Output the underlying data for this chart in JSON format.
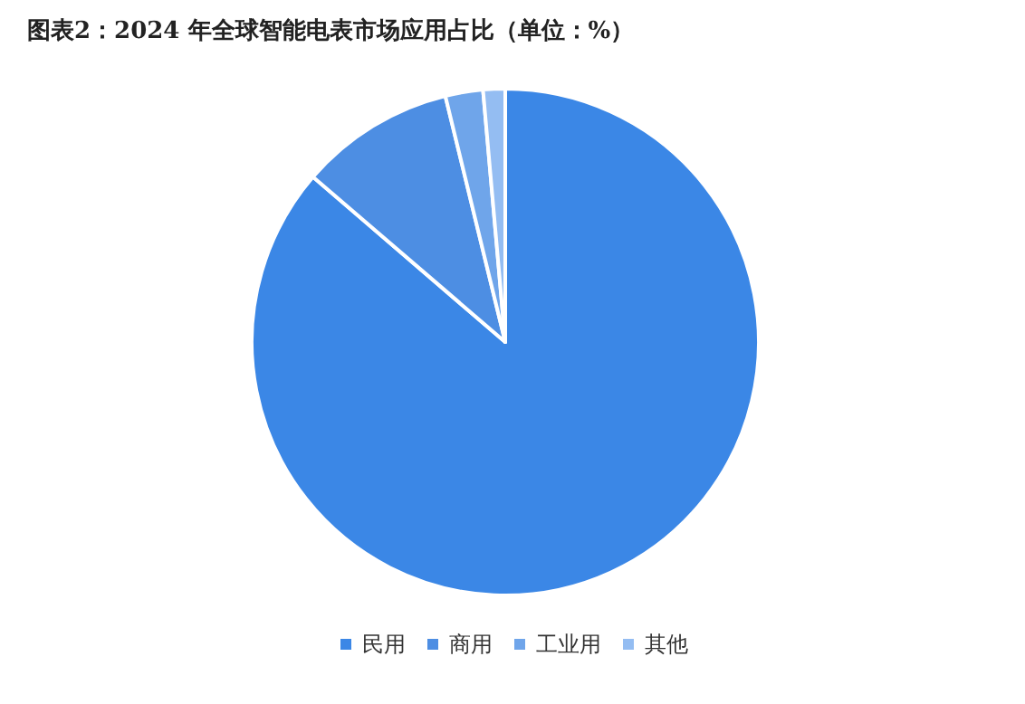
{
  "chart_data": {
    "type": "pie",
    "title": "图表2：2024 年全球智能电表市场应用占比（单位：%）",
    "categories": [
      "民用",
      "商用",
      "工业用",
      "其他"
    ],
    "values": [
      86.3,
      9.9,
      2.4,
      1.4
    ],
    "colors": [
      "#3b87e6",
      "#4d8ee3",
      "#6fa5ea",
      "#94bdf2"
    ],
    "legend": "bottom"
  }
}
